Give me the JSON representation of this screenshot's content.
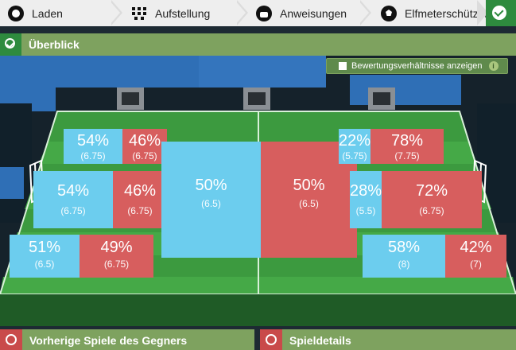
{
  "tabs": [
    {
      "label": "Laden",
      "icon": "record-icon"
    },
    {
      "label": "Aufstellung",
      "icon": "formation-grid-icon"
    },
    {
      "label": "Anweisungen",
      "icon": "whistle-icon"
    },
    {
      "label": "Elfmeterschützen",
      "icon": "football-icon"
    }
  ],
  "overview": {
    "title": "Überblick",
    "toggle_label": "Bewertungsverhältnisse anzeigen",
    "info_symbol": "i"
  },
  "zones_left": [
    {
      "blue_pct": "54%",
      "blue_rating": "(6.75)",
      "red_pct": "46%",
      "red_rating": "(6.75)"
    },
    {
      "blue_pct": "54%",
      "blue_rating": "(6.75)",
      "red_pct": "46%",
      "red_rating": "(6.75)"
    },
    {
      "blue_pct": "51%",
      "blue_rating": "(6.5)",
      "red_pct": "49%",
      "red_rating": "(6.75)"
    }
  ],
  "zone_center": {
    "blue_pct": "50%",
    "blue_rating": "(6.5)",
    "red_pct": "50%",
    "red_rating": "(6.5)"
  },
  "zones_right": [
    {
      "blue_pct": "22%",
      "blue_rating": "(5.75)",
      "red_pct": "78%",
      "red_rating": "(7.75)"
    },
    {
      "blue_pct": "28%",
      "blue_rating": "(5.5)",
      "red_pct": "72%",
      "red_rating": "(6.75)"
    },
    {
      "blue_pct": "58%",
      "blue_rating": "(8)",
      "red_pct": "42%",
      "red_rating": "(7)"
    }
  ],
  "bottom": {
    "left_title": "Vorherige Spiele des Gegners",
    "right_title": "Spieldetails"
  },
  "colors": {
    "home": "#6ccdee",
    "away": "#d75e5e",
    "accent": "#2e8b3e"
  }
}
